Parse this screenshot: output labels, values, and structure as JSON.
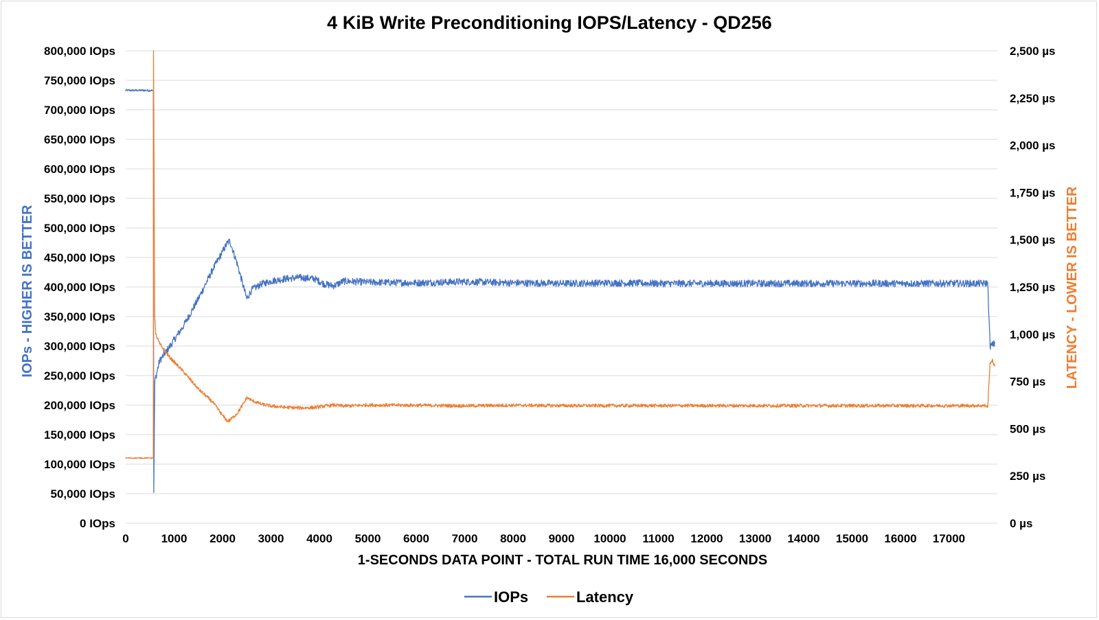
{
  "chart_data": {
    "type": "line",
    "title": "4 KiB Write Preconditioning IOPS/Latency - QD256",
    "xlabel": "1-SECONDS DATA POINT - TOTAL RUN TIME 16,000 SECONDS",
    "ylabel_left": "IOPs - HIGHER IS BETTER",
    "ylabel_right": "LATENCY - LOWER IS BETTER",
    "xlim": [
      0,
      18000
    ],
    "ylim_left": [
      0,
      800000
    ],
    "ylim_right": [
      0,
      2500
    ],
    "grid": true,
    "legend_position": "bottom",
    "x_ticks": [
      "0",
      "1000",
      "2000",
      "3000",
      "4000",
      "5000",
      "6000",
      "7000",
      "8000",
      "9000",
      "10000",
      "11000",
      "12000",
      "13000",
      "14000",
      "15000",
      "16000",
      "17000"
    ],
    "x_tick_values": [
      0,
      1000,
      2000,
      3000,
      4000,
      5000,
      6000,
      7000,
      8000,
      9000,
      10000,
      11000,
      12000,
      13000,
      14000,
      15000,
      16000,
      17000
    ],
    "y_left_ticks": [
      "0 IOps",
      "50,000 IOps",
      "100,000 IOps",
      "150,000 IOps",
      "200,000 IOps",
      "250,000 IOps",
      "300,000 IOps",
      "350,000 IOps",
      "400,000 IOps",
      "450,000 IOps",
      "500,000 IOps",
      "550,000 IOps",
      "600,000 IOps",
      "650,000 IOps",
      "700,000 IOps",
      "750,000 IOps",
      "800,000 IOps"
    ],
    "y_left_tick_values": [
      0,
      50000,
      100000,
      150000,
      200000,
      250000,
      300000,
      350000,
      400000,
      450000,
      500000,
      550000,
      600000,
      650000,
      700000,
      750000,
      800000
    ],
    "y_right_ticks": [
      "0 µs",
      "250 µs",
      "500 µs",
      "750 µs",
      "1,000 µs",
      "1,250 µs",
      "1,500 µs",
      "1,750 µs",
      "2,000 µs",
      "2,250 µs",
      "2,500 µs"
    ],
    "y_right_tick_values": [
      0,
      250,
      500,
      750,
      1000,
      1250,
      1500,
      1750,
      2000,
      2250,
      2500
    ],
    "series": [
      {
        "name": "IOPs",
        "axis": "left",
        "color": "#4472c4",
        "x": [
          0,
          560,
          570,
          580,
          600,
          700,
          900,
          1200,
          1500,
          1800,
          2000,
          2100,
          2150,
          2300,
          2450,
          2500,
          2600,
          2800,
          3000,
          3300,
          3600,
          3900,
          4100,
          4300,
          4500,
          5000,
          6000,
          7000,
          8000,
          9000,
          10000,
          11000,
          12000,
          13000,
          14000,
          15000,
          16000,
          17000,
          17750,
          17800,
          17850,
          17900,
          17950
        ],
        "y": [
          733000,
          733000,
          733000,
          52000,
          240000,
          275000,
          298000,
          335000,
          380000,
          430000,
          460000,
          475000,
          478000,
          440000,
          395000,
          380000,
          395000,
          405000,
          410000,
          414000,
          416000,
          414000,
          405000,
          402000,
          410000,
          408000,
          407000,
          409000,
          407000,
          406000,
          407000,
          406000,
          406000,
          406000,
          406000,
          406000,
          406000,
          406000,
          406000,
          408000,
          300000,
          302000,
          305000
        ]
      },
      {
        "name": "Latency",
        "axis": "right",
        "color": "#ed7d31",
        "x": [
          0,
          560,
          570,
          575,
          580,
          600,
          620,
          700,
          900,
          1200,
          1500,
          1800,
          2000,
          2100,
          2150,
          2300,
          2450,
          2500,
          2600,
          2800,
          3000,
          3300,
          3600,
          3900,
          4100,
          4300,
          4500,
          5000,
          6000,
          7000,
          8000,
          9000,
          10000,
          11000,
          12000,
          13000,
          14000,
          15000,
          16000,
          17000,
          17750,
          17800,
          17850,
          17900,
          17950
        ],
        "y": [
          345,
          345,
          345,
          2500,
          2200,
          1090,
          1000,
          950,
          880,
          800,
          710,
          640,
          570,
          540,
          545,
          580,
          640,
          665,
          650,
          630,
          620,
          613,
          610,
          612,
          620,
          625,
          620,
          625,
          624,
          621,
          624,
          622,
          622,
          622,
          622,
          622,
          622,
          622,
          622,
          622,
          622,
          612,
          850,
          860,
          830
        ]
      }
    ]
  },
  "legend": {
    "iops_label": "IOPs",
    "latency_label": "Latency"
  }
}
